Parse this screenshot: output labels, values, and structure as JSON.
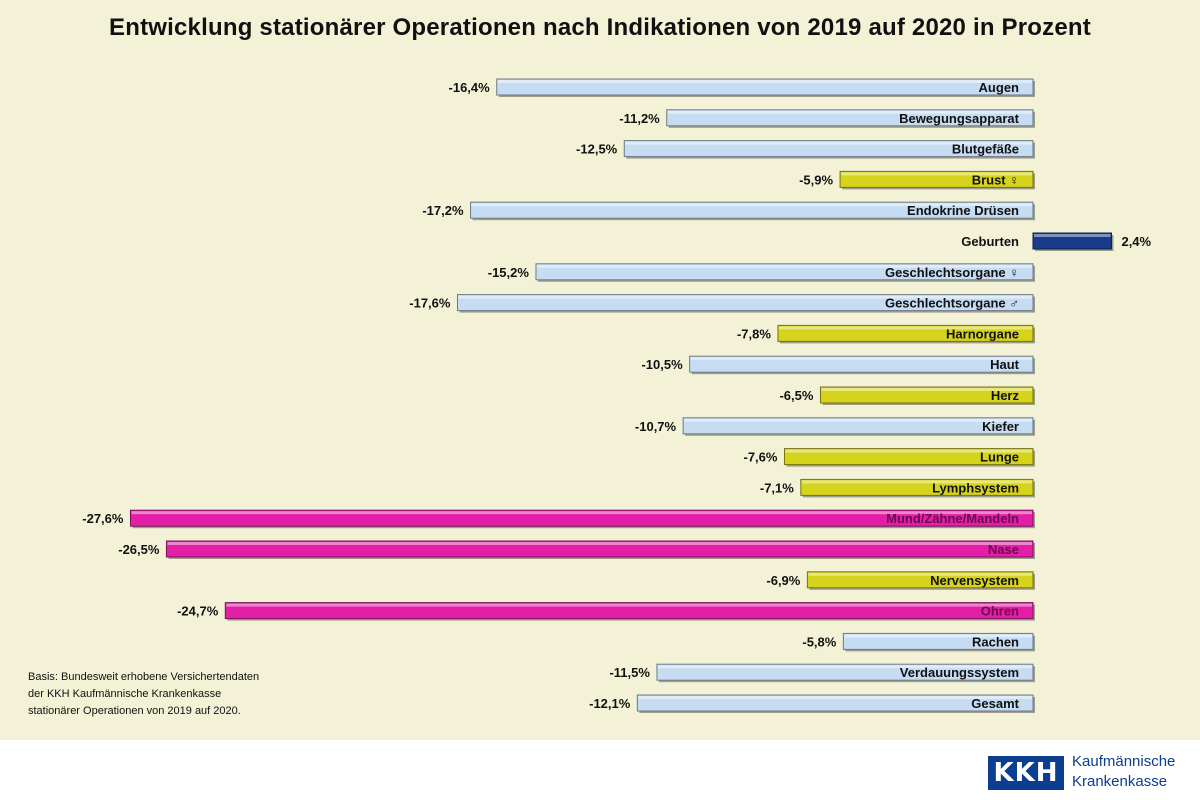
{
  "chart_data": {
    "type": "bar",
    "orientation": "horizontal",
    "title": "Entwicklung stationärer Operationen nach Indikationen von 2019 auf 2020 in Prozent",
    "categories": [
      "Augen",
      "Bewegungsapparat",
      "Blutgefäße",
      "Brust ♀",
      "Endokrine Drüsen",
      "Geburten",
      "Geschlechtsorgane ♀",
      "Geschlechtsorgane ♂",
      "Harnorgane",
      "Haut",
      "Herz",
      "Kiefer",
      "Lunge",
      "Lymphsystem",
      "Mund/Zähne/Mandeln",
      "Nase",
      "Nervensystem",
      "Ohren",
      "Rachen",
      "Verdauungssystem",
      "Gesamt"
    ],
    "values": [
      -16.4,
      -11.2,
      -12.5,
      -5.9,
      -17.2,
      2.4,
      -15.2,
      -17.6,
      -7.8,
      -10.5,
      -6.5,
      -10.7,
      -7.6,
      -7.1,
      -27.6,
      -26.5,
      -6.9,
      -24.7,
      -5.8,
      -11.5,
      -12.1
    ],
    "value_labels": [
      "-16,4%",
      "-11,2%",
      "-12,5%",
      "-5,9%",
      "-17,2%",
      "2,4%",
      "-15,2%",
      "-17,6%",
      "-7,8%",
      "-10,5%",
      "-6,5%",
      "-10,7%",
      "-7,6%",
      "-7,1%",
      "-27,6%",
      "-26,5%",
      "-6,9%",
      "-24,7%",
      "-5,8%",
      "-11,5%",
      "-12,1%"
    ],
    "bar_colors": [
      "#c6dcf3",
      "#c6dcf3",
      "#c6dcf3",
      "#d6d31c",
      "#c6dcf3",
      "#1a3a8a",
      "#c6dcf3",
      "#c6dcf3",
      "#d6d31c",
      "#c6dcf3",
      "#d6d31c",
      "#c6dcf3",
      "#d6d31c",
      "#d6d31c",
      "#e21fa6",
      "#e21fa6",
      "#d6d31c",
      "#e21fa6",
      "#c6dcf3",
      "#c6dcf3",
      "#c6dcf3"
    ],
    "xlim": [
      -28.5,
      3.5
    ],
    "grid": false,
    "legend": "none"
  },
  "footnote": {
    "lines": [
      "Basis: Bundesweit erhobene Versichertendaten",
      "der KKH Kaufmännische Krankenkasse",
      "stationärer Operationen von 2019 auf 2020."
    ]
  },
  "logo": {
    "mark": "KKH",
    "line1": "Kaufmännische",
    "line2": "Krankenkasse"
  }
}
